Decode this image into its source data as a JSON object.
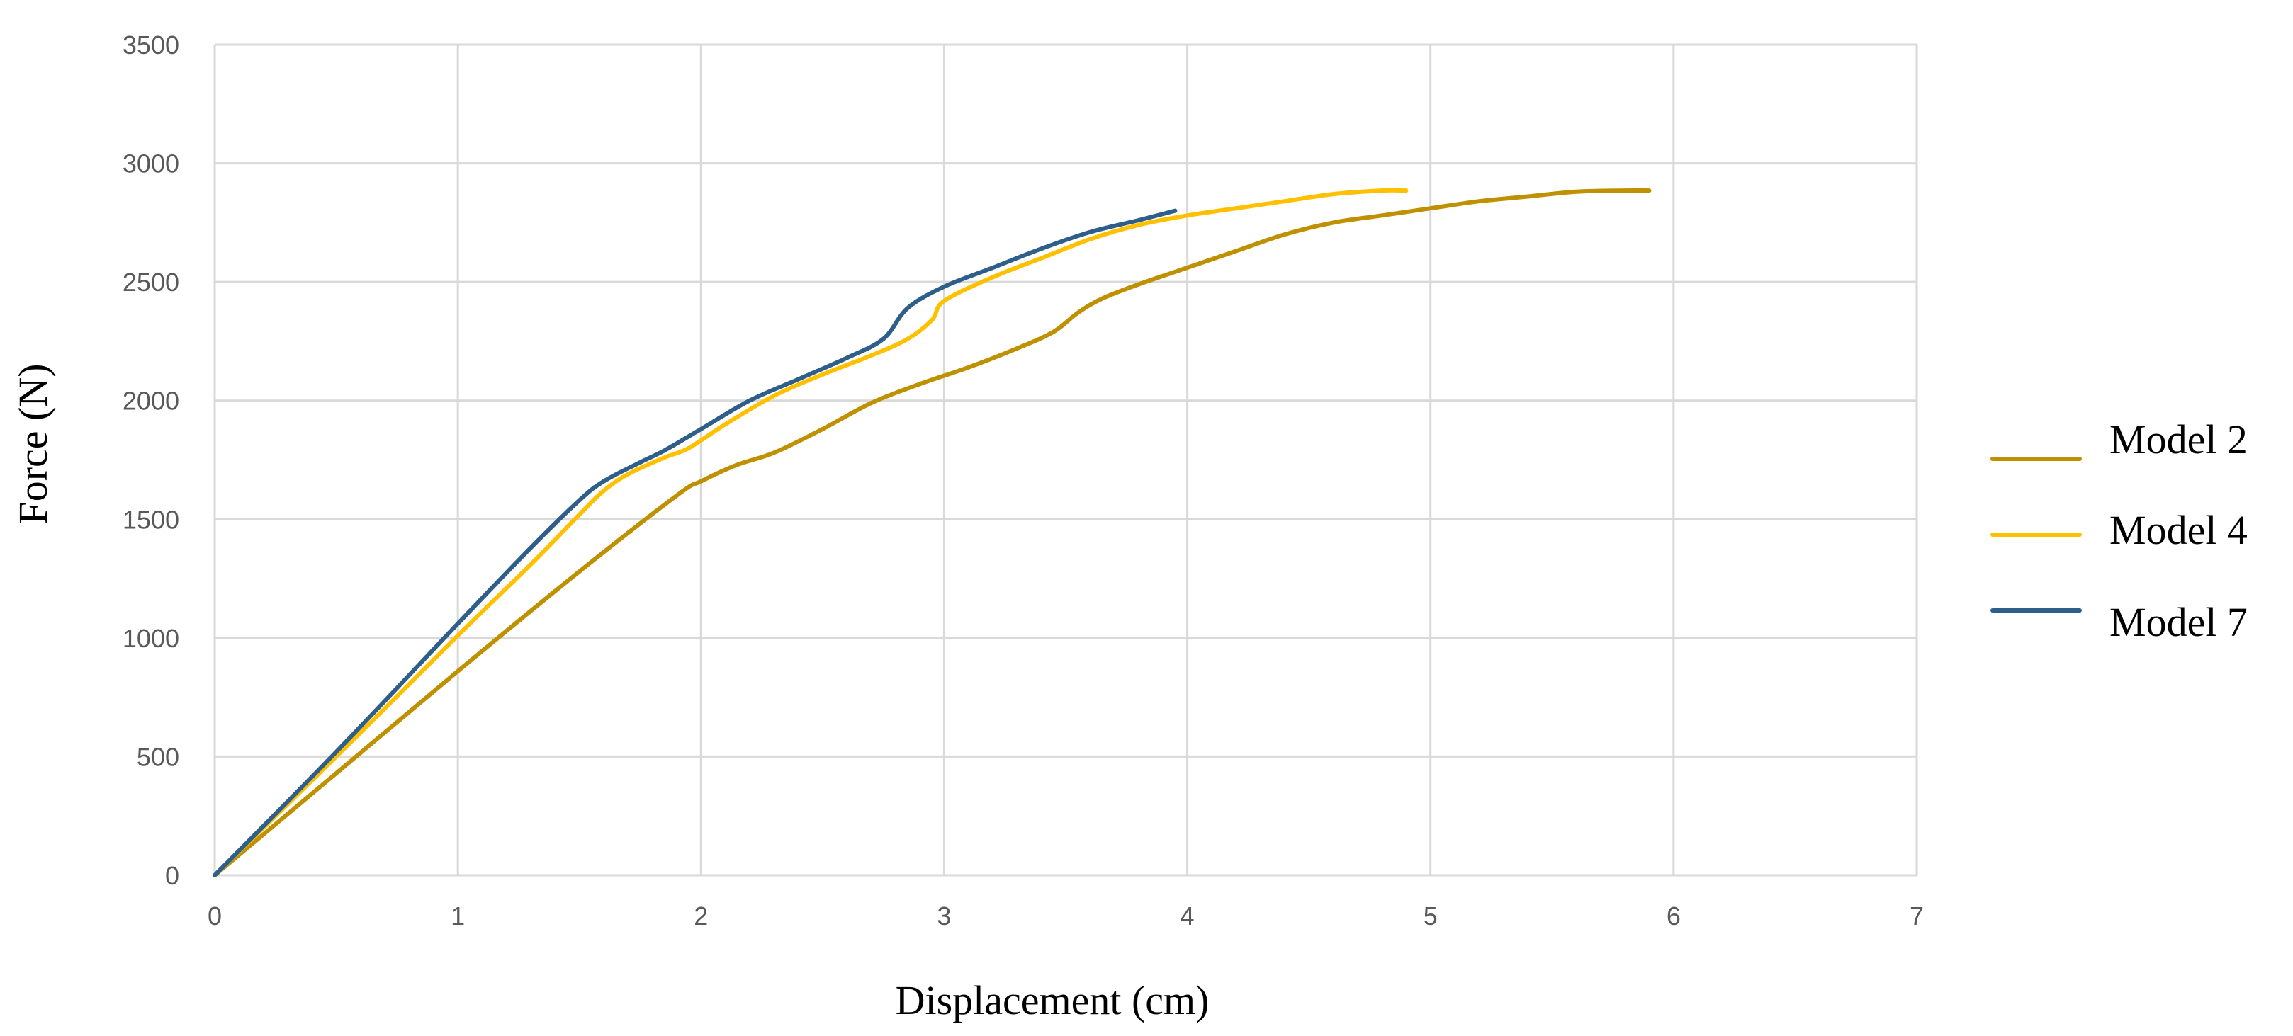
{
  "chart_data": {
    "type": "line",
    "title": "",
    "xlabel": "Displacement (cm)",
    "ylabel": "Force (N)",
    "xlim": [
      0,
      7
    ],
    "ylim": [
      0,
      3500
    ],
    "x_ticks": [
      "0",
      "1",
      "2",
      "3",
      "4",
      "5",
      "6",
      "7"
    ],
    "y_ticks": [
      "0",
      "500",
      "1000",
      "1500",
      "2000",
      "2500",
      "3000",
      "3500"
    ],
    "grid": true,
    "legend_position": "right",
    "series": [
      {
        "name": "Model 2",
        "color": "#bf9000",
        "points": [
          [
            0,
            0
          ],
          [
            0.5,
            430
          ],
          [
            1,
            860
          ],
          [
            1.5,
            1280
          ],
          [
            1.9,
            1600
          ],
          [
            2.0,
            1660
          ],
          [
            2.15,
            1730
          ],
          [
            2.3,
            1780
          ],
          [
            2.5,
            1880
          ],
          [
            2.7,
            1990
          ],
          [
            2.9,
            2070
          ],
          [
            3.1,
            2140
          ],
          [
            3.3,
            2220
          ],
          [
            3.45,
            2290
          ],
          [
            3.55,
            2370
          ],
          [
            3.65,
            2430
          ],
          [
            3.8,
            2490
          ],
          [
            4.0,
            2560
          ],
          [
            4.2,
            2630
          ],
          [
            4.4,
            2700
          ],
          [
            4.6,
            2750
          ],
          [
            4.8,
            2780
          ],
          [
            5.0,
            2810
          ],
          [
            5.2,
            2840
          ],
          [
            5.4,
            2860
          ],
          [
            5.6,
            2880
          ],
          [
            5.8,
            2885
          ],
          [
            5.9,
            2885
          ]
        ]
      },
      {
        "name": "Model 4",
        "color": "#ffc000",
        "points": [
          [
            0,
            0
          ],
          [
            0.5,
            500
          ],
          [
            1,
            1010
          ],
          [
            1.3,
            1310
          ],
          [
            1.5,
            1520
          ],
          [
            1.6,
            1620
          ],
          [
            1.7,
            1690
          ],
          [
            1.85,
            1760
          ],
          [
            1.95,
            1800
          ],
          [
            2.1,
            1900
          ],
          [
            2.3,
            2020
          ],
          [
            2.5,
            2110
          ],
          [
            2.7,
            2190
          ],
          [
            2.85,
            2260
          ],
          [
            2.95,
            2340
          ],
          [
            3.0,
            2420
          ],
          [
            3.2,
            2520
          ],
          [
            3.4,
            2600
          ],
          [
            3.6,
            2680
          ],
          [
            3.8,
            2740
          ],
          [
            4.0,
            2780
          ],
          [
            4.2,
            2810
          ],
          [
            4.4,
            2840
          ],
          [
            4.6,
            2870
          ],
          [
            4.8,
            2885
          ],
          [
            4.9,
            2885
          ]
        ]
      },
      {
        "name": "Model 7",
        "color": "#2e5f8a",
        "points": [
          [
            0,
            0
          ],
          [
            0.5,
            520
          ],
          [
            1,
            1060
          ],
          [
            1.3,
            1380
          ],
          [
            1.5,
            1580
          ],
          [
            1.6,
            1660
          ],
          [
            1.75,
            1740
          ],
          [
            1.85,
            1790
          ],
          [
            2.0,
            1880
          ],
          [
            2.2,
            2000
          ],
          [
            2.4,
            2090
          ],
          [
            2.6,
            2180
          ],
          [
            2.75,
            2260
          ],
          [
            2.85,
            2390
          ],
          [
            3.0,
            2480
          ],
          [
            3.2,
            2560
          ],
          [
            3.4,
            2640
          ],
          [
            3.6,
            2710
          ],
          [
            3.8,
            2760
          ],
          [
            3.95,
            2800
          ]
        ]
      }
    ]
  }
}
